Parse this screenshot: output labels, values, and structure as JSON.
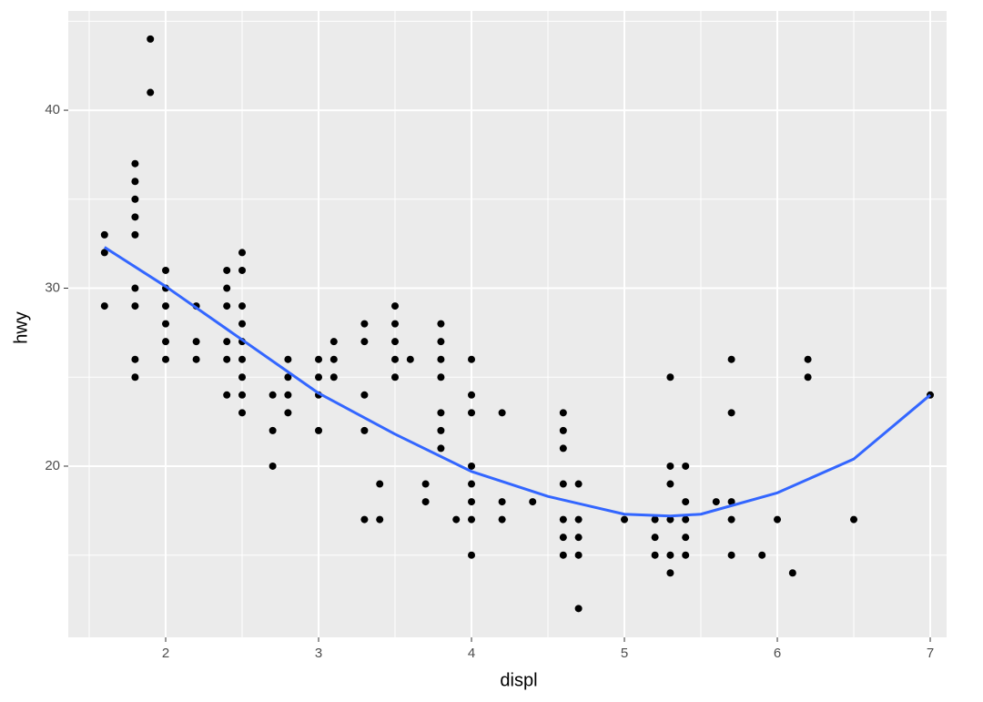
{
  "chart_data": {
    "type": "scatter",
    "x_label": "displ",
    "y_label": "hwy",
    "xlim": [
      1.363,
      7.107
    ],
    "ylim": [
      10.38,
      45.58
    ],
    "xticks": [
      2,
      3,
      4,
      5,
      6,
      7
    ],
    "yticks": [
      20,
      30,
      40
    ],
    "grid": true,
    "points": {
      "color": "#000000",
      "x": [
        1.6,
        1.6,
        1.6,
        1.8,
        1.8,
        1.8,
        1.8,
        1.8,
        1.8,
        1.8,
        1.8,
        1.8,
        1.9,
        1.9,
        2.0,
        2.0,
        2.0,
        2.0,
        2.0,
        2.0,
        2.2,
        2.2,
        2.2,
        2.4,
        2.4,
        2.4,
        2.4,
        2.4,
        2.4,
        2.5,
        2.5,
        2.5,
        2.5,
        2.5,
        2.5,
        2.5,
        2.5,
        2.5,
        2.7,
        2.7,
        2.7,
        2.8,
        2.8,
        2.8,
        2.8,
        3.0,
        3.0,
        3.0,
        3.0,
        3.1,
        3.1,
        3.1,
        3.3,
        3.3,
        3.3,
        3.3,
        3.3,
        3.4,
        3.4,
        3.5,
        3.5,
        3.5,
        3.5,
        3.5,
        3.6,
        3.7,
        3.7,
        3.8,
        3.8,
        3.8,
        3.8,
        3.8,
        3.8,
        3.8,
        3.9,
        4.0,
        4.0,
        4.0,
        4.0,
        4.0,
        4.0,
        4.0,
        4.0,
        4.2,
        4.2,
        4.2,
        4.4,
        4.6,
        4.6,
        4.6,
        4.6,
        4.6,
        4.6,
        4.6,
        4.7,
        4.7,
        4.7,
        4.7,
        4.7,
        5.0,
        5.2,
        5.2,
        5.2,
        5.3,
        5.3,
        5.3,
        5.3,
        5.3,
        5.3,
        5.4,
        5.4,
        5.4,
        5.4,
        5.4,
        5.6,
        5.7,
        5.7,
        5.7,
        5.7,
        5.7,
        5.9,
        6.0,
        6.1,
        6.2,
        6.2,
        6.5,
        7.0
      ],
      "values": [
        33,
        32,
        29,
        37,
        36,
        35,
        34,
        33,
        30,
        29,
        26,
        25,
        44,
        41,
        31,
        30,
        29,
        28,
        27,
        26,
        29,
        27,
        26,
        31,
        30,
        29,
        27,
        26,
        24,
        32,
        31,
        29,
        28,
        27,
        26,
        25,
        24,
        23,
        24,
        22,
        20,
        26,
        25,
        24,
        23,
        26,
        25,
        24,
        22,
        27,
        26,
        25,
        28,
        27,
        24,
        22,
        17,
        19,
        17,
        29,
        28,
        27,
        26,
        25,
        26,
        19,
        18,
        28,
        27,
        26,
        25,
        23,
        22,
        21,
        17,
        26,
        24,
        23,
        20,
        19,
        18,
        17,
        15,
        23,
        18,
        17,
        18,
        23,
        22,
        21,
        19,
        17,
        16,
        15,
        19,
        17,
        16,
        15,
        12,
        17,
        17,
        16,
        15,
        25,
        20,
        19,
        17,
        15,
        14,
        20,
        18,
        17,
        16,
        15,
        18,
        26,
        23,
        18,
        17,
        15,
        15,
        17,
        14,
        26,
        25,
        17,
        24
      ]
    },
    "smooth": {
      "color": "#3366FF",
      "x": [
        1.6,
        2.0,
        2.5,
        3.0,
        3.5,
        4.0,
        4.5,
        5.0,
        5.3,
        5.5,
        6.0,
        6.5,
        7.0
      ],
      "values": [
        32.3,
        30.1,
        27.1,
        24.1,
        21.8,
        19.7,
        18.3,
        17.3,
        17.2,
        17.3,
        18.5,
        20.4,
        24.0
      ]
    }
  }
}
